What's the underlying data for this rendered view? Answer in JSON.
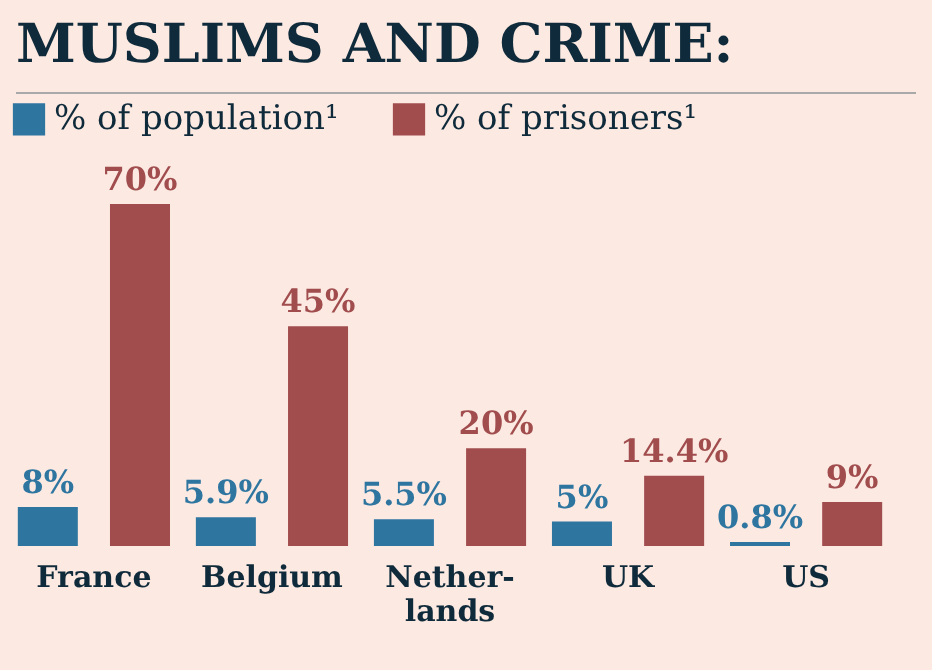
{
  "chart_data": {
    "type": "bar",
    "title": "MUSLIMS AND CRIME:",
    "categories": [
      "France",
      "Belgium",
      "Nether-\nlands",
      "UK",
      "US"
    ],
    "series": [
      {
        "name": "% of population¹",
        "color": "#2e75a0",
        "values": [
          8,
          5.9,
          5.5,
          5,
          0.8
        ],
        "value_labels": [
          "8%",
          "5.9%",
          "5.5%",
          "5%",
          "0.8%"
        ]
      },
      {
        "name": "% of prisoners¹",
        "color": "#a14c4d",
        "values": [
          70,
          45,
          20,
          14.4,
          9
        ],
        "value_labels": [
          "70%",
          "45%",
          "20%",
          "14.4%",
          "9%"
        ]
      }
    ],
    "legend": "top left"
  }
}
